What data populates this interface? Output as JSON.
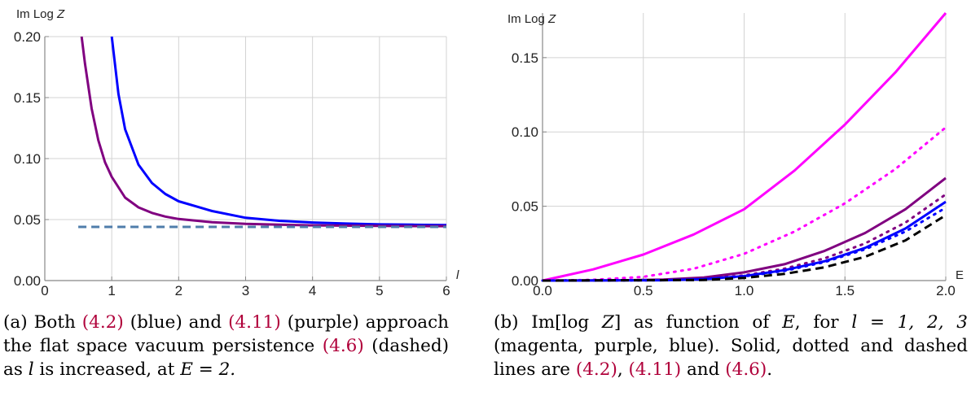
{
  "chart_data": [
    {
      "type": "line",
      "ylabel": "Im Log Z",
      "xlabel": "l",
      "xlim": [
        0,
        6
      ],
      "ylim": [
        0,
        0.2
      ],
      "xticks": [
        "0",
        "1",
        "2",
        "3",
        "4",
        "5",
        "6"
      ],
      "yticks": [
        "0.00",
        "0.05",
        "0.10",
        "0.15",
        "0.20"
      ],
      "grid": true,
      "series": [
        {
          "color": "#0000ff",
          "dash": "solid",
          "x": [
            1.0,
            1.1,
            1.2,
            1.4,
            1.6,
            1.8,
            2.0,
            2.5,
            3.0,
            3.5,
            4.0,
            4.5,
            5.0,
            5.5,
            6.0
          ],
          "y": [
            0.2,
            0.153,
            0.124,
            0.095,
            0.08,
            0.071,
            0.065,
            0.057,
            0.0515,
            0.049,
            0.0476,
            0.0467,
            0.0461,
            0.0458,
            0.0455
          ]
        },
        {
          "color": "#800080",
          "dash": "solid",
          "x": [
            0.55,
            0.6,
            0.7,
            0.8,
            0.9,
            1.0,
            1.2,
            1.4,
            1.6,
            1.8,
            2.0,
            2.5,
            3.0,
            3.5,
            4.0,
            5.0,
            6.0
          ],
          "y": [
            0.2,
            0.178,
            0.141,
            0.115,
            0.097,
            0.085,
            0.068,
            0.06,
            0.0555,
            0.0525,
            0.0505,
            0.0478,
            0.0465,
            0.0458,
            0.0453,
            0.0448,
            0.0446
          ]
        },
        {
          "color": "#4f7dab",
          "dash": "dashed",
          "x": [
            0.5,
            6.0
          ],
          "y": [
            0.044,
            0.044
          ]
        }
      ],
      "caption_parts": {
        "p1": "(a) Both ",
        "ref1": "(4.2)",
        "p2": " (blue) and ",
        "ref2": "(4.11)",
        "p3": " (purple) approach the flat space vacuum persistence ",
        "ref3": "(4.6)",
        "p4": " (dashed) as ",
        "var": "l",
        "p5": " is increased, at ",
        "eq": "E = 2."
      }
    },
    {
      "type": "line",
      "ylabel": "Im Log Z",
      "xlabel": "E",
      "xlim": [
        0,
        2
      ],
      "ylim": [
        0,
        0.18
      ],
      "xticks": [
        "0.0",
        "0.5",
        "1.0",
        "1.5",
        "2.0"
      ],
      "yticks": [
        "0.00",
        "0.05",
        "0.10",
        "0.15"
      ],
      "grid": true,
      "series": [
        {
          "color": "#ff00ff",
          "dash": "solid",
          "x": [
            0,
            0.25,
            0.5,
            0.75,
            1.0,
            1.25,
            1.5,
            1.75,
            2.0
          ],
          "y": [
            0,
            0.0075,
            0.0175,
            0.031,
            0.048,
            0.074,
            0.105,
            0.14,
            0.18
          ]
        },
        {
          "color": "#ff00ff",
          "dash": "dotted",
          "x": [
            0,
            0.25,
            0.5,
            0.75,
            1.0,
            1.25,
            1.5,
            1.75,
            2.0
          ],
          "y": [
            0,
            0.0005,
            0.0025,
            0.008,
            0.018,
            0.033,
            0.052,
            0.075,
            0.103
          ]
        },
        {
          "color": "#800080",
          "dash": "solid",
          "x": [
            0,
            0.4,
            0.6,
            0.8,
            1.0,
            1.2,
            1.4,
            1.6,
            1.8,
            2.0
          ],
          "y": [
            0,
            0.0002,
            0.0007,
            0.002,
            0.0055,
            0.011,
            0.02,
            0.032,
            0.048,
            0.069
          ]
        },
        {
          "color": "#800080",
          "dash": "dotted",
          "x": [
            0,
            0.6,
            0.8,
            1.0,
            1.2,
            1.4,
            1.6,
            1.8,
            2.0
          ],
          "y": [
            0,
            0.0003,
            0.0012,
            0.0035,
            0.008,
            0.015,
            0.025,
            0.039,
            0.058
          ]
        },
        {
          "color": "#0000ff",
          "dash": "solid",
          "x": [
            0,
            0.6,
            0.8,
            1.0,
            1.2,
            1.4,
            1.6,
            1.8,
            2.0
          ],
          "y": [
            0,
            0.0002,
            0.001,
            0.003,
            0.007,
            0.013,
            0.022,
            0.035,
            0.053
          ]
        },
        {
          "color": "#0000ff",
          "dash": "dotted",
          "x": [
            0,
            0.6,
            0.8,
            1.0,
            1.2,
            1.4,
            1.6,
            1.8,
            2.0
          ],
          "y": [
            0,
            0.0002,
            0.0009,
            0.0028,
            0.0065,
            0.0125,
            0.021,
            0.033,
            0.049
          ]
        },
        {
          "color": "#000000",
          "dash": "dashed",
          "x": [
            0,
            0.8,
            1.0,
            1.2,
            1.4,
            1.6,
            1.8,
            2.0
          ],
          "y": [
            0,
            0.0004,
            0.0018,
            0.0045,
            0.009,
            0.016,
            0.027,
            0.044
          ]
        }
      ],
      "caption_parts": {
        "p1": "(b) Im[log ",
        "zvar": "Z",
        "p2": "] as function of ",
        "evar": "E",
        "p3": ", for ",
        "eq": "l = 1, 2, 3",
        "p4": " (magenta, purple, blue). Solid, dotted and dashed lines are ",
        "ref1": "(4.2)",
        "p5": ", ",
        "ref2": "(4.11)",
        "p6": " and ",
        "ref3": "(4.6)",
        "p7": "."
      }
    }
  ]
}
